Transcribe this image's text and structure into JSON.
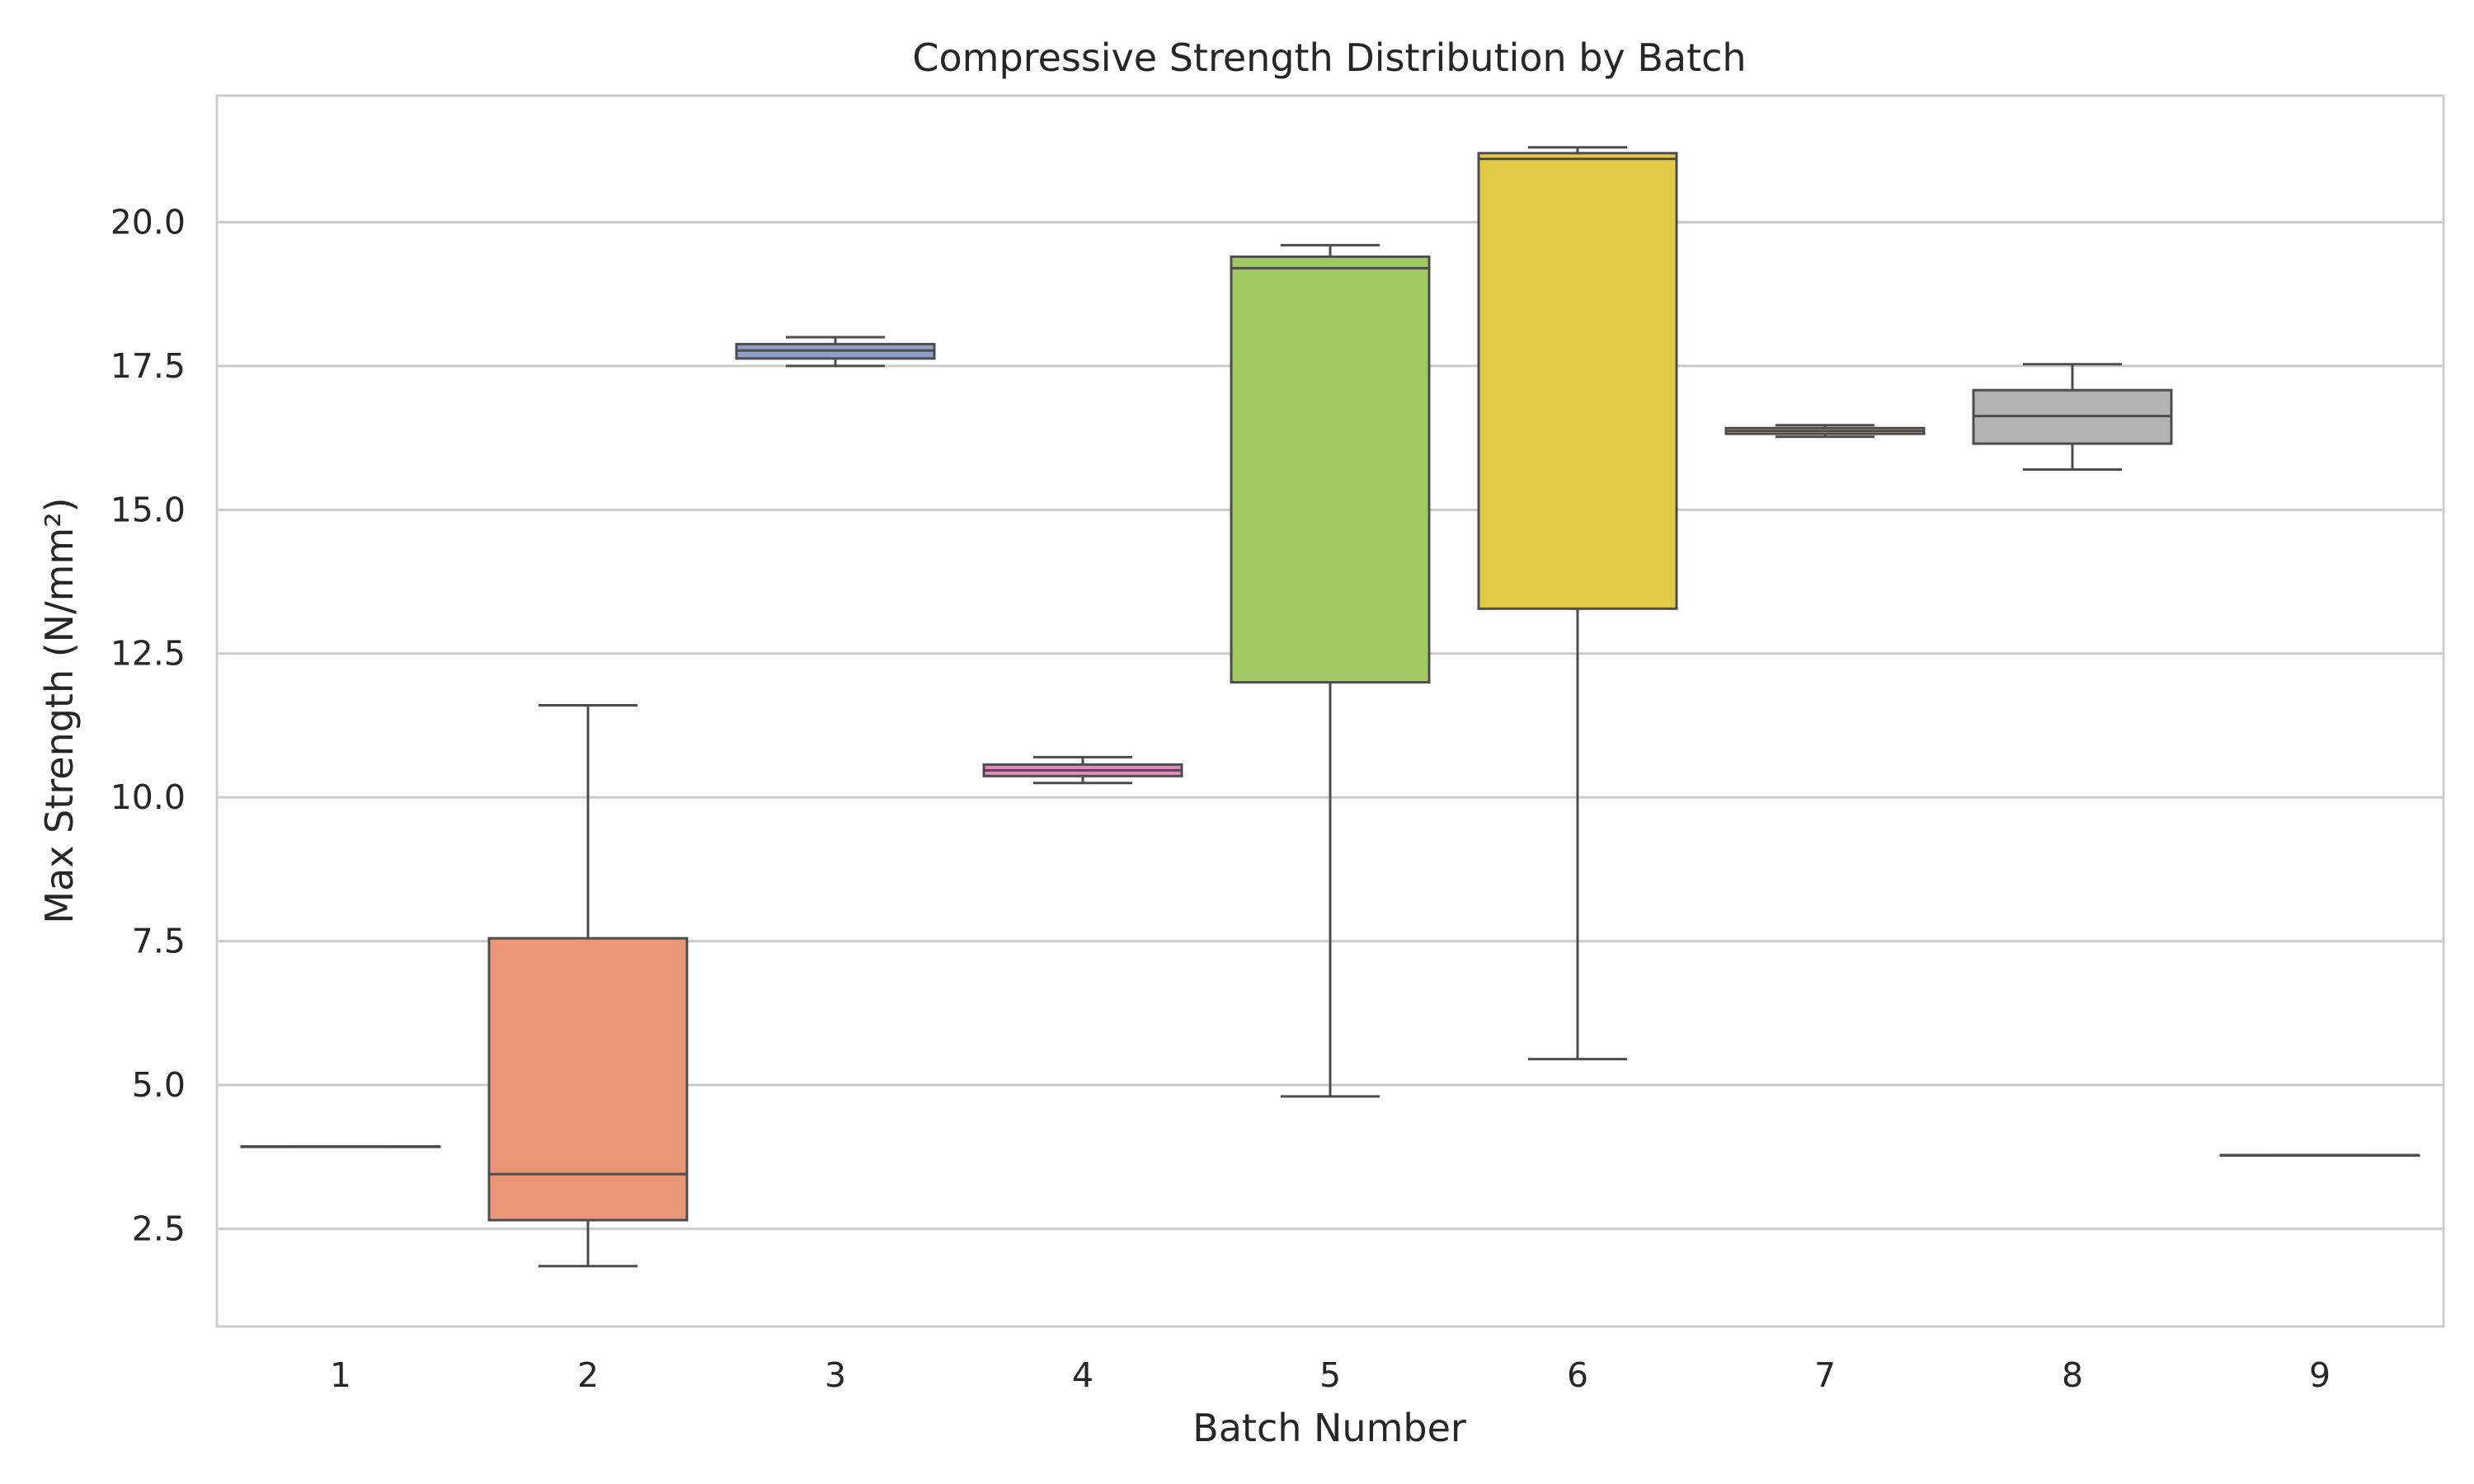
{
  "chart_data": {
    "type": "box",
    "title": "Compressive Strength Distribution by Batch",
    "xlabel": "Batch Number",
    "ylabel": "Max Strength (N/mm²)",
    "ylim": [
      0.8,
      22.2
    ],
    "yticks": [
      2.5,
      5.0,
      7.5,
      10.0,
      12.5,
      15.0,
      17.5,
      20.0
    ],
    "ytick_labels": [
      "2.5",
      "5.0",
      "7.5",
      "10.0",
      "12.5",
      "15.0",
      "17.5",
      "20.0"
    ],
    "grid": "horizontal",
    "categories": [
      "1",
      "2",
      "3",
      "4",
      "5",
      "6",
      "7",
      "8",
      "9"
    ],
    "boxes": [
      {
        "batch": "1",
        "min": 3.93,
        "q1": 3.93,
        "median": 3.93,
        "q3": 3.93,
        "max": 3.93,
        "color": "#66c2a5"
      },
      {
        "batch": "2",
        "min": 1.85,
        "q1": 2.65,
        "median": 3.45,
        "q3": 7.55,
        "max": 11.6,
        "color": "#e99675"
      },
      {
        "batch": "3",
        "min": 17.5,
        "q1": 17.63,
        "median": 17.77,
        "q3": 17.88,
        "max": 18.0,
        "color": "#8da0cb"
      },
      {
        "batch": "4",
        "min": 10.25,
        "q1": 10.37,
        "median": 10.47,
        "q3": 10.57,
        "max": 10.7,
        "color": "#e78ac3"
      },
      {
        "batch": "5",
        "min": 4.8,
        "q1": 12.0,
        "median": 19.2,
        "q3": 19.4,
        "max": 19.6,
        "color": "#a1c964"
      },
      {
        "batch": "6",
        "min": 5.45,
        "q1": 13.28,
        "median": 21.1,
        "q3": 21.2,
        "max": 21.3,
        "color": "#e2c946"
      },
      {
        "batch": "7",
        "min": 16.27,
        "q1": 16.32,
        "median": 16.37,
        "q3": 16.42,
        "max": 16.47,
        "color": "#e5c494"
      },
      {
        "batch": "8",
        "min": 15.7,
        "q1": 16.15,
        "median": 16.63,
        "q3": 17.08,
        "max": 17.53,
        "color": "#b3b3b3"
      },
      {
        "batch": "9",
        "min": 3.78,
        "q1": 3.78,
        "median": 3.78,
        "q3": 3.78,
        "max": 3.78,
        "color": "#66c2a5"
      }
    ],
    "colors": {
      "grid": "#cccccc",
      "spine": "#cccccc",
      "box_edge": "#4d4d4d"
    }
  }
}
